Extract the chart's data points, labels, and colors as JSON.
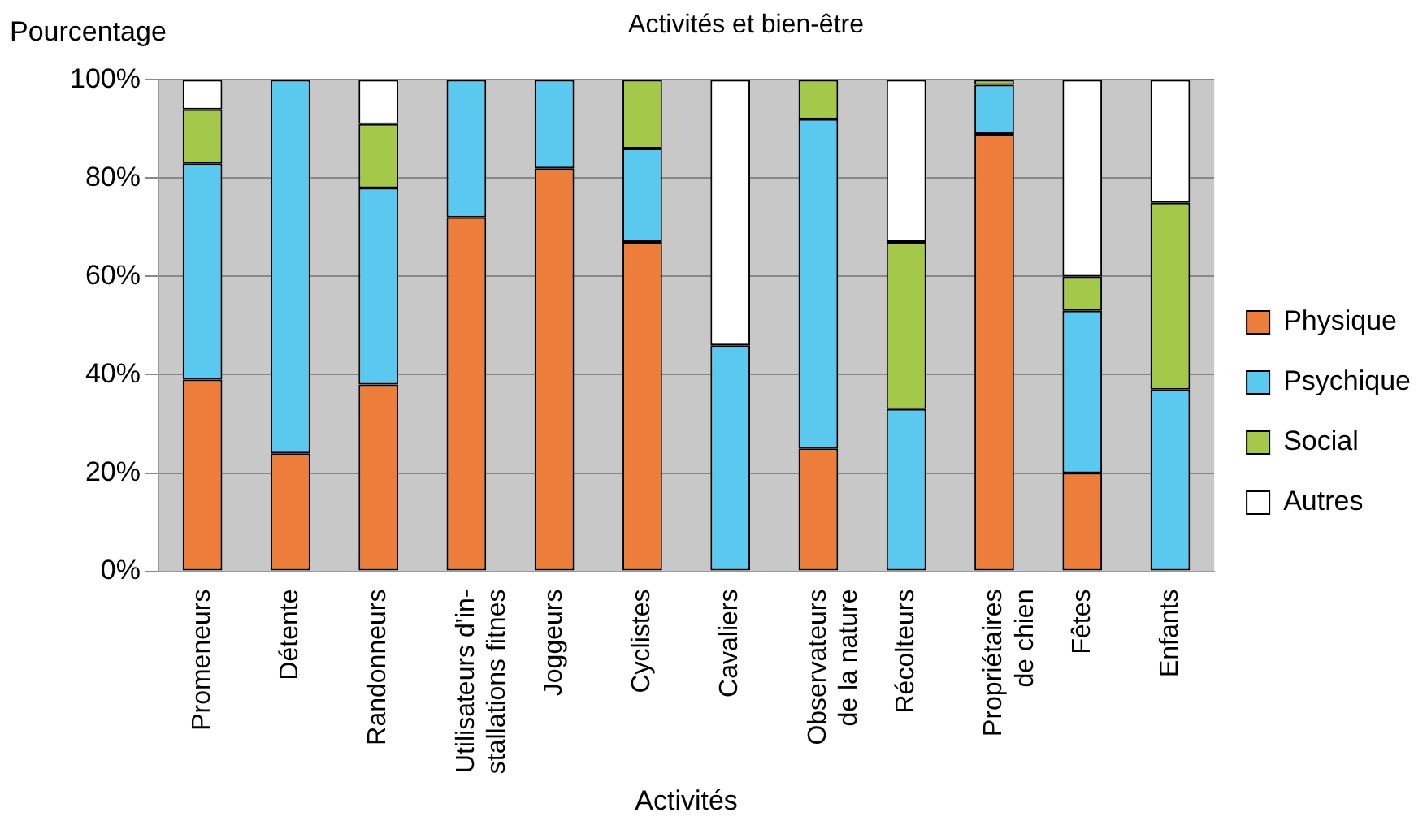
{
  "chart_data": {
    "type": "bar",
    "stacked": true,
    "title": "Activités et bien-être",
    "ylabel": "Pourcentage",
    "xlabel": "Activités",
    "categories": [
      "Promeneurs",
      "Détente",
      "Randonneurs",
      "Utilisateurs d'in-\nstallations fitnes",
      "Joggeurs",
      "Cyclistes",
      "Cavaliers",
      "Observateurs\nde la nature",
      "Récolteurs",
      "Propriétaires\nde chien",
      "Fêtes",
      "Enfants"
    ],
    "series": [
      {
        "name": "Physique",
        "color": "#ed7d3a",
        "values": [
          39,
          24,
          38,
          72,
          82,
          67,
          0,
          25,
          0,
          89,
          20,
          0
        ]
      },
      {
        "name": "Psychique",
        "color": "#5bc8f0",
        "values": [
          44,
          76,
          40,
          28,
          18,
          19,
          46,
          67,
          33,
          10,
          33,
          37
        ]
      },
      {
        "name": "Social",
        "color": "#a4c94a",
        "values": [
          11,
          0,
          13,
          0,
          0,
          14,
          0,
          8,
          34,
          1,
          7,
          38
        ]
      },
      {
        "name": "Autres",
        "color": "#ffffff",
        "values": [
          6,
          0,
          9,
          0,
          0,
          0,
          54,
          0,
          33,
          0,
          40,
          25
        ]
      }
    ],
    "ylim": [
      0,
      100
    ],
    "yticks": [
      {
        "value": 0,
        "label": "0%"
      },
      {
        "value": 20,
        "label": "20%"
      },
      {
        "value": 40,
        "label": "40%"
      },
      {
        "value": 60,
        "label": "60%"
      },
      {
        "value": 80,
        "label": "80%"
      },
      {
        "value": 100,
        "label": "100%"
      }
    ],
    "grid": "y",
    "legend": "right"
  }
}
